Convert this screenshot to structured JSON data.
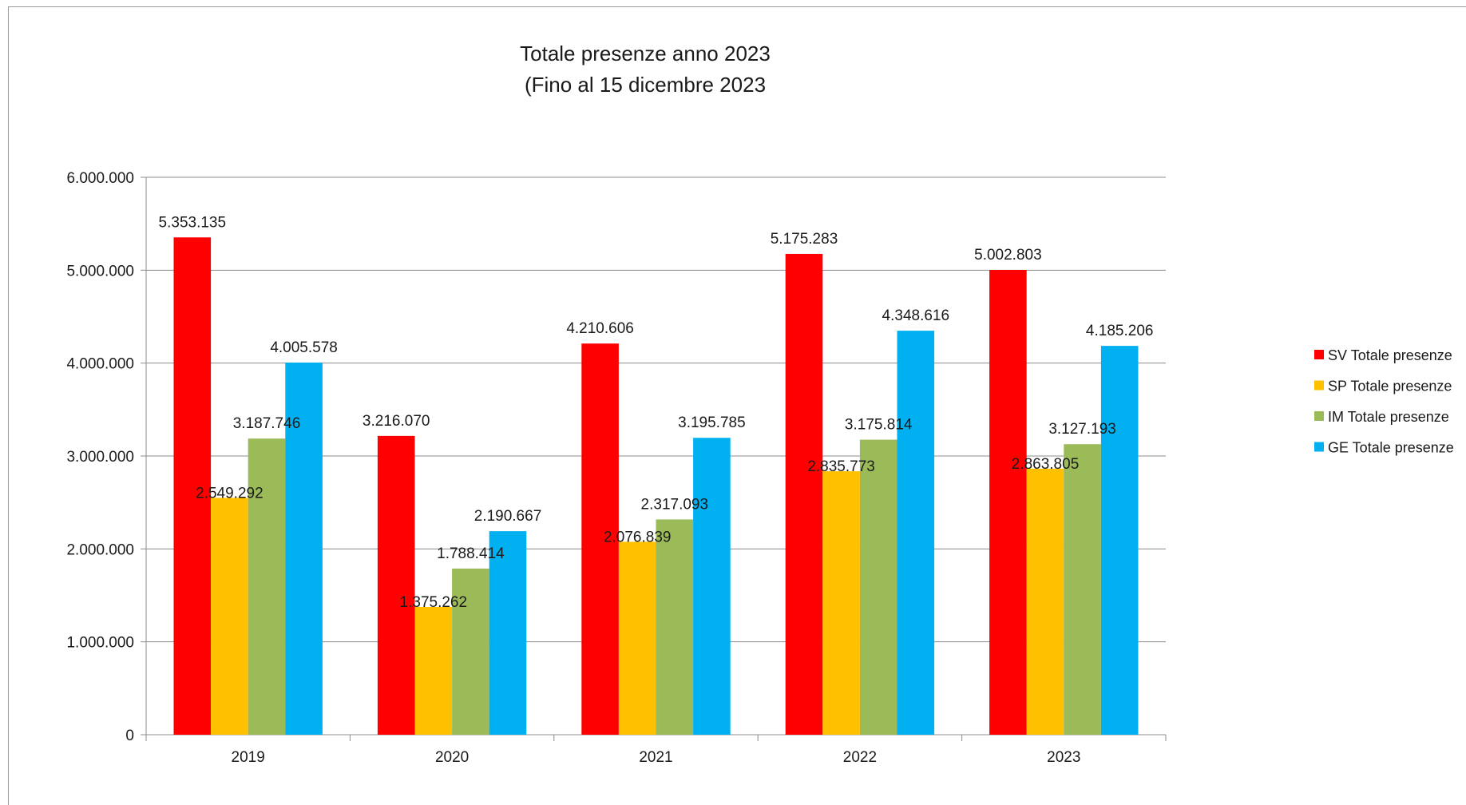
{
  "chart_data": {
    "type": "bar",
    "title": "Totale presenze anno 2023",
    "subtitle": "(Fino al 15 dicembre 2023",
    "categories": [
      "2019",
      "2020",
      "2021",
      "2022",
      "2023"
    ],
    "series": [
      {
        "name": "SV Totale presenze",
        "color": "#ff0000",
        "values": [
          5353135,
          3216070,
          4210606,
          5175283,
          5002803
        ],
        "labels": [
          "5.353.135",
          "3.216.070",
          "4.210.606",
          "5.175.283",
          "5.002.803"
        ]
      },
      {
        "name": "SP Totale presenze",
        "color": "#ffc000",
        "values": [
          2549292,
          1375262,
          2076839,
          2835773,
          2863805
        ],
        "labels": [
          "2.549.292",
          "1.375.262",
          "2.076.839",
          "2.835.773",
          "2.863.805"
        ]
      },
      {
        "name": "IM Totale presenze",
        "color": "#9bbb59",
        "values": [
          3187746,
          1788414,
          2317093,
          3175814,
          3127193
        ],
        "labels": [
          "3.187.746",
          "1.788.414",
          "2.317.093",
          "3.175.814",
          "3.127.193"
        ]
      },
      {
        "name": "GE Totale presenze",
        "color": "#00b0f0",
        "values": [
          4005578,
          2190667,
          3195785,
          4348616,
          4185206
        ],
        "labels": [
          "4.005.578",
          "2.190.667",
          "3.195.785",
          "4.348.616",
          "4.185.206"
        ]
      }
    ],
    "ylim": [
      0,
      6000000
    ],
    "yticks": [
      0,
      1000000,
      2000000,
      3000000,
      4000000,
      5000000,
      6000000
    ],
    "ytick_labels": [
      "0",
      "1.000.000",
      "2.000.000",
      "3.000.000",
      "4.000.000",
      "5.000.000",
      "6.000.000"
    ],
    "grid": true,
    "legend_position": "right"
  }
}
